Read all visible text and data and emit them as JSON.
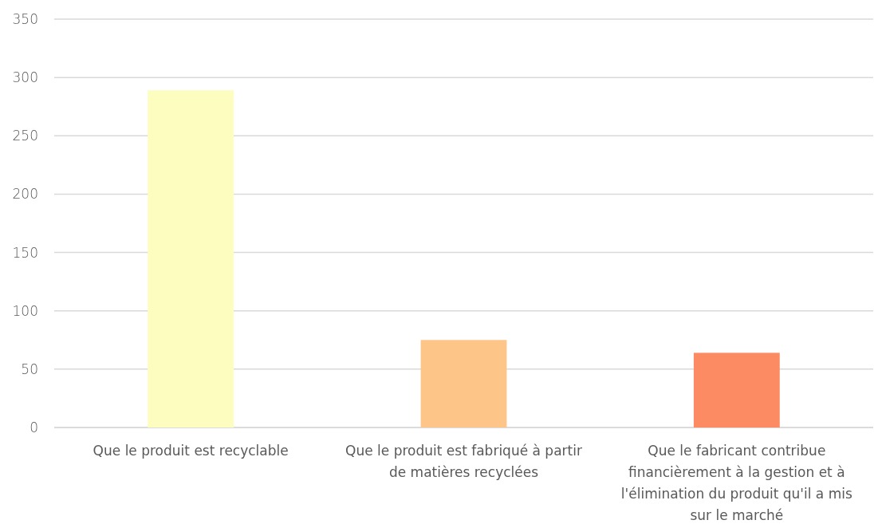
{
  "chart_data": {
    "type": "bar",
    "categories": [
      "Que le produit est recyclable",
      "Que le produit est fabriqué à partir de matières recyclées",
      "Que le fabricant contribue financièrement à la gestion et à l'élimination du produit qu'il a mis sur le marché"
    ],
    "values": [
      289,
      75,
      64
    ],
    "colors": [
      "#fdfdc0",
      "#fec589",
      "#fc8a62"
    ],
    "ylim": [
      0,
      350
    ],
    "yticks": [
      0,
      50,
      100,
      150,
      200,
      250,
      300,
      350
    ],
    "grid": "y"
  }
}
